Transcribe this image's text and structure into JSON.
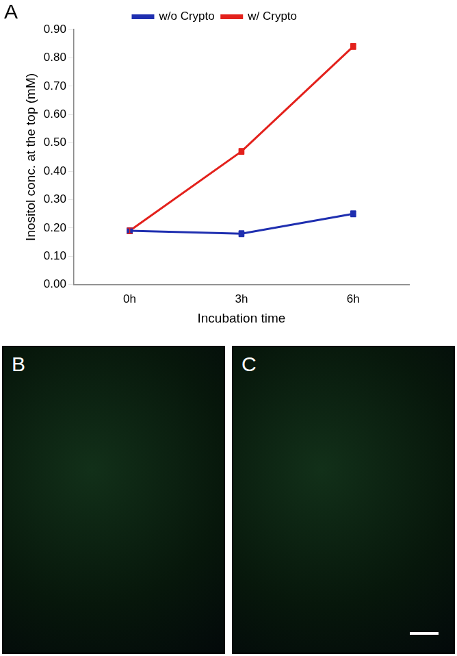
{
  "chart_data": {
    "type": "line",
    "panel_label": "A",
    "x_label": "Incubation time",
    "y_label": "Inositol conc. at the top (mM)",
    "categories": [
      "0h",
      "3h",
      "6h"
    ],
    "series": [
      {
        "name": "w/o Crypto",
        "color": "#1f2fb0",
        "marker": "square",
        "values": [
          0.19,
          0.18,
          0.25
        ],
        "errors": [
          0.01,
          0.01,
          0.01
        ]
      },
      {
        "name": "w/ Crypto",
        "color": "#e3211c",
        "marker": "square",
        "values": [
          0.19,
          0.47,
          0.84
        ],
        "errors": [
          0.01,
          0.01,
          0.01
        ]
      }
    ],
    "ylim": [
      0,
      0.9
    ],
    "yticks": [
      {
        "value": 0,
        "label": "0.00"
      },
      {
        "value": 0.1,
        "label": "0.10"
      },
      {
        "value": 0.2,
        "label": "0.20"
      },
      {
        "value": 0.3,
        "label": "0.30"
      },
      {
        "value": 0.4,
        "label": "0.40"
      },
      {
        "value": 0.5,
        "label": "0.50"
      },
      {
        "value": 0.6,
        "label": "0.60"
      },
      {
        "value": 0.7,
        "label": "0.70"
      },
      {
        "value": 0.8,
        "label": "0.80"
      },
      {
        "value": 0.9,
        "label": "0.90"
      }
    ],
    "grid": false,
    "legend": "top"
  },
  "image_panels": [
    "B",
    "C"
  ]
}
